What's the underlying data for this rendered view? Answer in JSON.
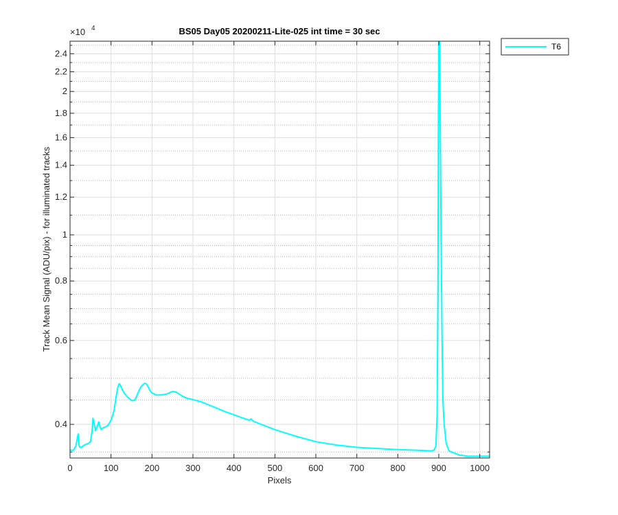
{
  "chart_data": {
    "type": "line",
    "title": "BS05 Day05 20200211-Lite-025 int time = 30 sec",
    "xlabel": "Pixels",
    "ylabel": "Track Mean Signal (ADU/pix) - for illuminated tracks",
    "y_exponent_label": "×10",
    "y_exponent_power": "4",
    "y_scale": "log",
    "y_multiplier": 10000,
    "xlim": [
      0,
      1024
    ],
    "ylim": [
      0.34,
      2.55
    ],
    "xticks": [
      0,
      100,
      200,
      300,
      400,
      500,
      600,
      700,
      800,
      900,
      1000
    ],
    "xtick_labels": [
      "0",
      "100",
      "200",
      "300",
      "400",
      "500",
      "600",
      "700",
      "800",
      "900",
      "1000"
    ],
    "yticks": [
      0.4,
      0.6,
      0.8,
      1,
      1.2,
      1.4,
      1.6,
      1.8,
      2,
      2.2,
      2.4
    ],
    "ytick_labels": [
      "0.4",
      "0.6",
      "0.8",
      "1",
      "1.2",
      "1.4",
      "1.6",
      "1.8",
      "2",
      "2.2",
      "2.4"
    ],
    "yminor": [
      0.35,
      0.45,
      0.5,
      0.55,
      0.65,
      0.7,
      0.75,
      0.85,
      0.9,
      0.95,
      1.1,
      1.3,
      1.5,
      1.7,
      1.9,
      2.1,
      2.3,
      2.5
    ],
    "grid": true,
    "legend_position": "outside-top-right",
    "series": [
      {
        "name": "T6",
        "color": "#00ffff",
        "x": [
          0,
          8,
          14,
          18,
          20,
          22,
          24,
          27,
          35,
          45,
          50,
          54,
          56,
          58,
          62,
          66,
          70,
          73,
          76,
          80,
          86,
          92,
          98,
          103,
          108,
          113,
          117,
          120,
          123,
          128,
          135,
          142,
          150,
          157,
          162,
          167,
          172,
          177,
          182,
          186,
          190,
          195,
          200,
          210,
          220,
          235,
          250,
          258,
          265,
          275,
          285,
          300,
          320,
          340,
          360,
          380,
          400,
          420,
          438,
          442,
          445,
          448,
          460,
          480,
          500,
          550,
          600,
          650,
          700,
          750,
          800,
          850,
          880,
          888,
          893,
          896,
          898,
          899,
          900,
          902,
          904,
          906,
          908,
          910,
          913,
          918,
          925,
          935,
          950,
          970,
          1000,
          1024
        ],
        "y": [
          0.353,
          0.353,
          0.36,
          0.375,
          0.382,
          0.362,
          0.358,
          0.358,
          0.362,
          0.365,
          0.368,
          0.388,
          0.412,
          0.405,
          0.388,
          0.395,
          0.405,
          0.396,
          0.39,
          0.393,
          0.395,
          0.398,
          0.405,
          0.415,
          0.43,
          0.46,
          0.48,
          0.487,
          0.483,
          0.472,
          0.462,
          0.455,
          0.449,
          0.449,
          0.457,
          0.468,
          0.478,
          0.484,
          0.488,
          0.487,
          0.481,
          0.471,
          0.466,
          0.461,
          0.461,
          0.463,
          0.469,
          0.468,
          0.464,
          0.458,
          0.454,
          0.451,
          0.446,
          0.439,
          0.432,
          0.425,
          0.419,
          0.413,
          0.408,
          0.411,
          0.408,
          0.406,
          0.402,
          0.396,
          0.39,
          0.378,
          0.368,
          0.362,
          0.358,
          0.356,
          0.354,
          0.353,
          0.352,
          0.353,
          0.36,
          0.42,
          0.8,
          1.7,
          2.55,
          2.55,
          1.5,
          0.9,
          0.6,
          0.45,
          0.4,
          0.365,
          0.352,
          0.349,
          0.345,
          0.343,
          0.343,
          0.343
        ]
      }
    ]
  }
}
